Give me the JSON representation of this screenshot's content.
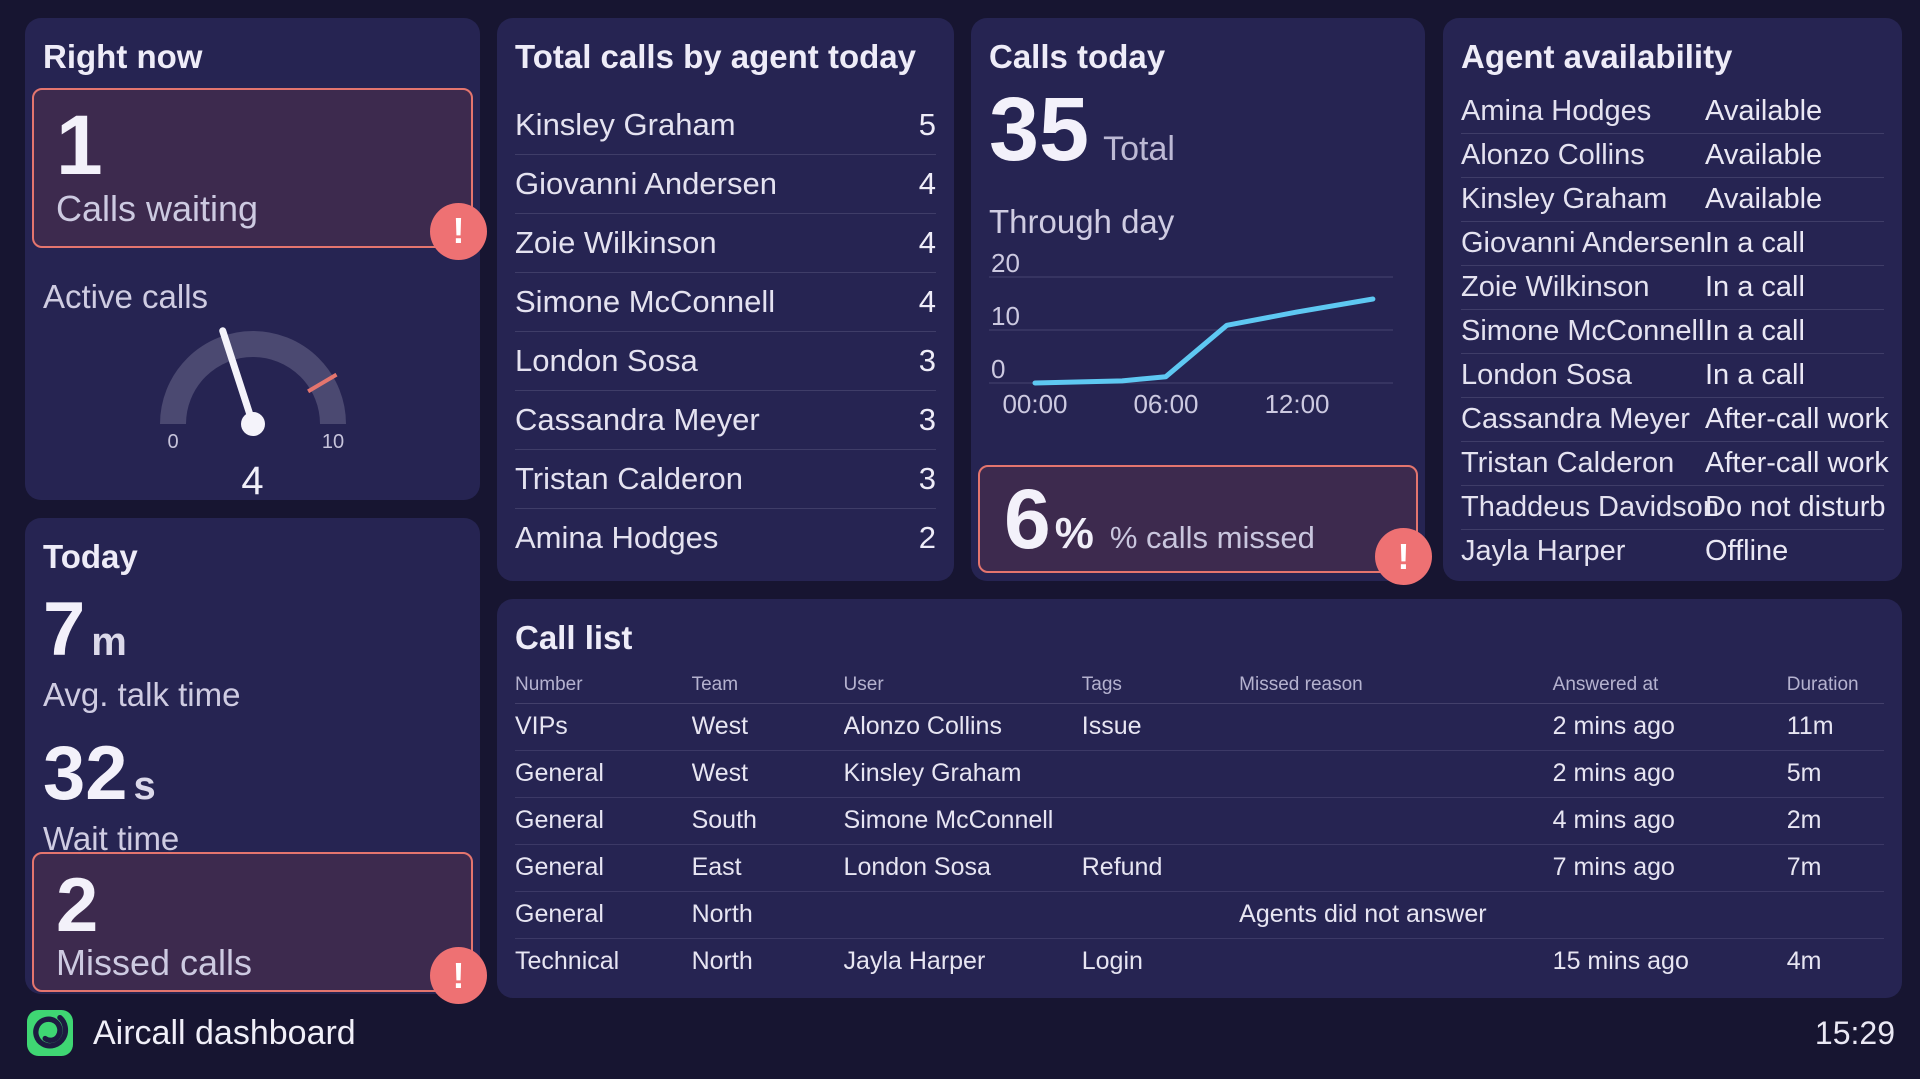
{
  "alert_glyph": "!",
  "right_now": {
    "title": "Right now",
    "calls_waiting": {
      "value": "1",
      "label": "Calls waiting"
    },
    "active_calls_label": "Active calls",
    "gauge_min": "0",
    "gauge_max": "10",
    "gauge_value": "4"
  },
  "today": {
    "title": "Today",
    "avg_talk": {
      "value": "7",
      "unit": "m",
      "label": "Avg. talk time"
    },
    "wait": {
      "value": "32",
      "unit": "s",
      "label": "Wait time"
    },
    "missed": {
      "value": "2",
      "label": "Missed calls"
    }
  },
  "agent_calls": {
    "title": "Total calls by agent today",
    "rows": [
      {
        "name": "Kinsley Graham",
        "count": "5"
      },
      {
        "name": "Giovanni Andersen",
        "count": "4"
      },
      {
        "name": "Zoie Wilkinson",
        "count": "4"
      },
      {
        "name": "Simone McConnell",
        "count": "4"
      },
      {
        "name": "London Sosa",
        "count": "3"
      },
      {
        "name": "Cassandra Meyer",
        "count": "3"
      },
      {
        "name": "Tristan Calderon",
        "count": "3"
      },
      {
        "name": "Amina Hodges",
        "count": "2"
      }
    ]
  },
  "calls_today": {
    "title": "Calls today",
    "total_value": "35",
    "total_label": "Total",
    "through_day_label": "Through day",
    "y_ticks": [
      "20",
      "10",
      "0"
    ],
    "x_ticks": [
      "00:00",
      "06:00",
      "12:00"
    ],
    "missed": {
      "value": "6",
      "unit": "%",
      "label": "% calls missed"
    }
  },
  "availability": {
    "title": "Agent availability",
    "rows": [
      {
        "name": "Amina Hodges",
        "status": "Available"
      },
      {
        "name": "Alonzo Collins",
        "status": "Available"
      },
      {
        "name": "Kinsley Graham",
        "status": "Available"
      },
      {
        "name": "Giovanni Andersen",
        "status": "In a call"
      },
      {
        "name": "Zoie Wilkinson",
        "status": "In a call"
      },
      {
        "name": "Simone McConnell",
        "status": "In a call"
      },
      {
        "name": "London Sosa",
        "status": "In a call"
      },
      {
        "name": "Cassandra Meyer",
        "status": "After-call work"
      },
      {
        "name": "Tristan Calderon",
        "status": "After-call work"
      },
      {
        "name": "Thaddeus Davidson",
        "status": "Do not disturb"
      },
      {
        "name": "Jayla Harper",
        "status": "Offline"
      }
    ]
  },
  "call_list": {
    "title": "Call list",
    "columns": [
      "Number",
      "Team",
      "User",
      "Tags",
      "Missed reason",
      "Answered at",
      "Duration"
    ],
    "rows": [
      {
        "number": "VIPs",
        "team": "West",
        "user": "Alonzo Collins",
        "tags": "Issue",
        "missed_reason": "",
        "answered_at": "2 mins ago",
        "duration": "11m"
      },
      {
        "number": "General",
        "team": "West",
        "user": "Kinsley Graham",
        "tags": "",
        "missed_reason": "",
        "answered_at": "2 mins ago",
        "duration": "5m"
      },
      {
        "number": "General",
        "team": "South",
        "user": "Simone McConnell",
        "tags": "",
        "missed_reason": "",
        "answered_at": "4 mins ago",
        "duration": "2m"
      },
      {
        "number": "General",
        "team": "East",
        "user": "London Sosa",
        "tags": "Refund",
        "missed_reason": "",
        "answered_at": "7 mins ago",
        "duration": "7m"
      },
      {
        "number": "General",
        "team": "North",
        "user": "",
        "tags": "",
        "missed_reason": "Agents did not answer",
        "answered_at": "",
        "duration": ""
      },
      {
        "number": "Technical",
        "team": "North",
        "user": "Jayla Harper",
        "tags": "Login",
        "missed_reason": "",
        "answered_at": "15 mins ago",
        "duration": "4m"
      }
    ]
  },
  "footer": {
    "brand": "Aircall dashboard",
    "clock": "15:29"
  },
  "colors": {
    "background": "#171531",
    "card": "#262452",
    "alert_border": "#e4756e",
    "alert_fill": "#3d2a4e",
    "badge_red": "#ee7173",
    "chart_blue": "#5ec8f2",
    "gauge_arc": "#4b4971",
    "logo_green": "#3fd673"
  },
  "chart_data": [
    {
      "type": "gauge",
      "title": "Active calls",
      "value": 4,
      "min": 0,
      "max": 10,
      "marker": 8.3,
      "tick_labels": [
        "0",
        "10"
      ]
    },
    {
      "type": "line",
      "title": "Through day",
      "x_ticks": [
        "00:00",
        "06:00",
        "12:00"
      ],
      "x_tick_hours": [
        0,
        6,
        12
      ],
      "x_range_hours": [
        0,
        16.4
      ],
      "ylim": [
        0,
        22
      ],
      "y_ticks": [
        20,
        10,
        0
      ],
      "grid": "horizontal",
      "legend": "none",
      "line_color": "#5ec8f2",
      "points": [
        {
          "x": 0,
          "y": 0
        },
        {
          "x": 4,
          "y": 0.4
        },
        {
          "x": 6,
          "y": 1.2
        },
        {
          "x": 8.8,
          "y": 11
        },
        {
          "x": 12,
          "y": 13.5
        },
        {
          "x": 15.5,
          "y": 16
        }
      ]
    }
  ]
}
